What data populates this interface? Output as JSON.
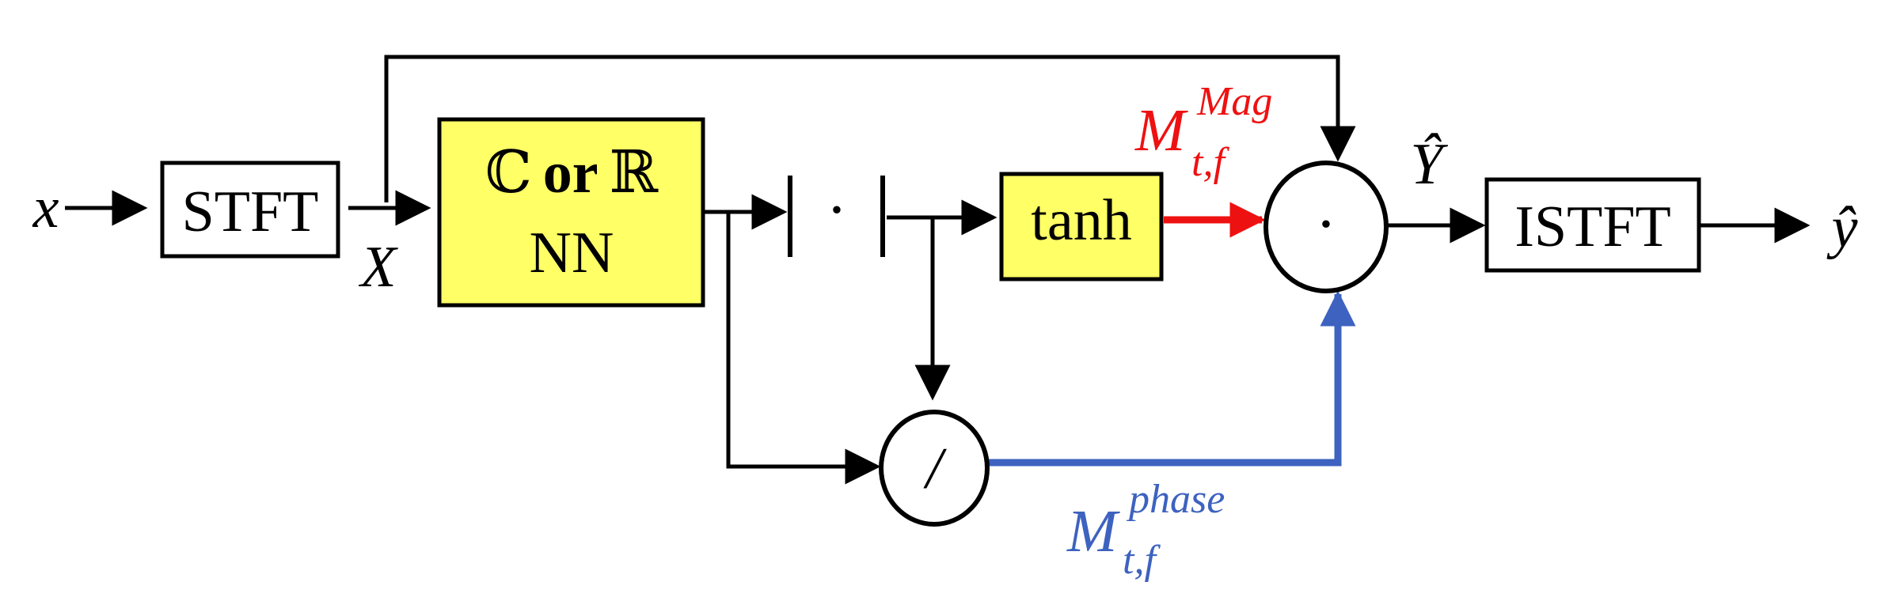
{
  "labels": {
    "input": "x",
    "stft": "STFT",
    "spectrum": "X",
    "nn_line1_c": "ℂ",
    "nn_line1_or": "or",
    "nn_line1_r": "ℝ",
    "nn_line2": "NN",
    "abs_dot": "·",
    "tanh": "tanh",
    "multiply": "·",
    "divide": "/",
    "output_spectrum": "Ŷ",
    "istft": "ISTFT",
    "output": "ŷ",
    "mag_mask_base": "M",
    "mag_mask_sup": "Mag",
    "mag_mask_sub": "t,f",
    "phase_mask_base": "M",
    "phase_mask_sup": "phase",
    "phase_mask_sub": "t,f"
  },
  "colors": {
    "nn_fill": "#ffff66",
    "magnitude": "#ee1111",
    "phase": "#3d62bf",
    "line": "#000000"
  }
}
